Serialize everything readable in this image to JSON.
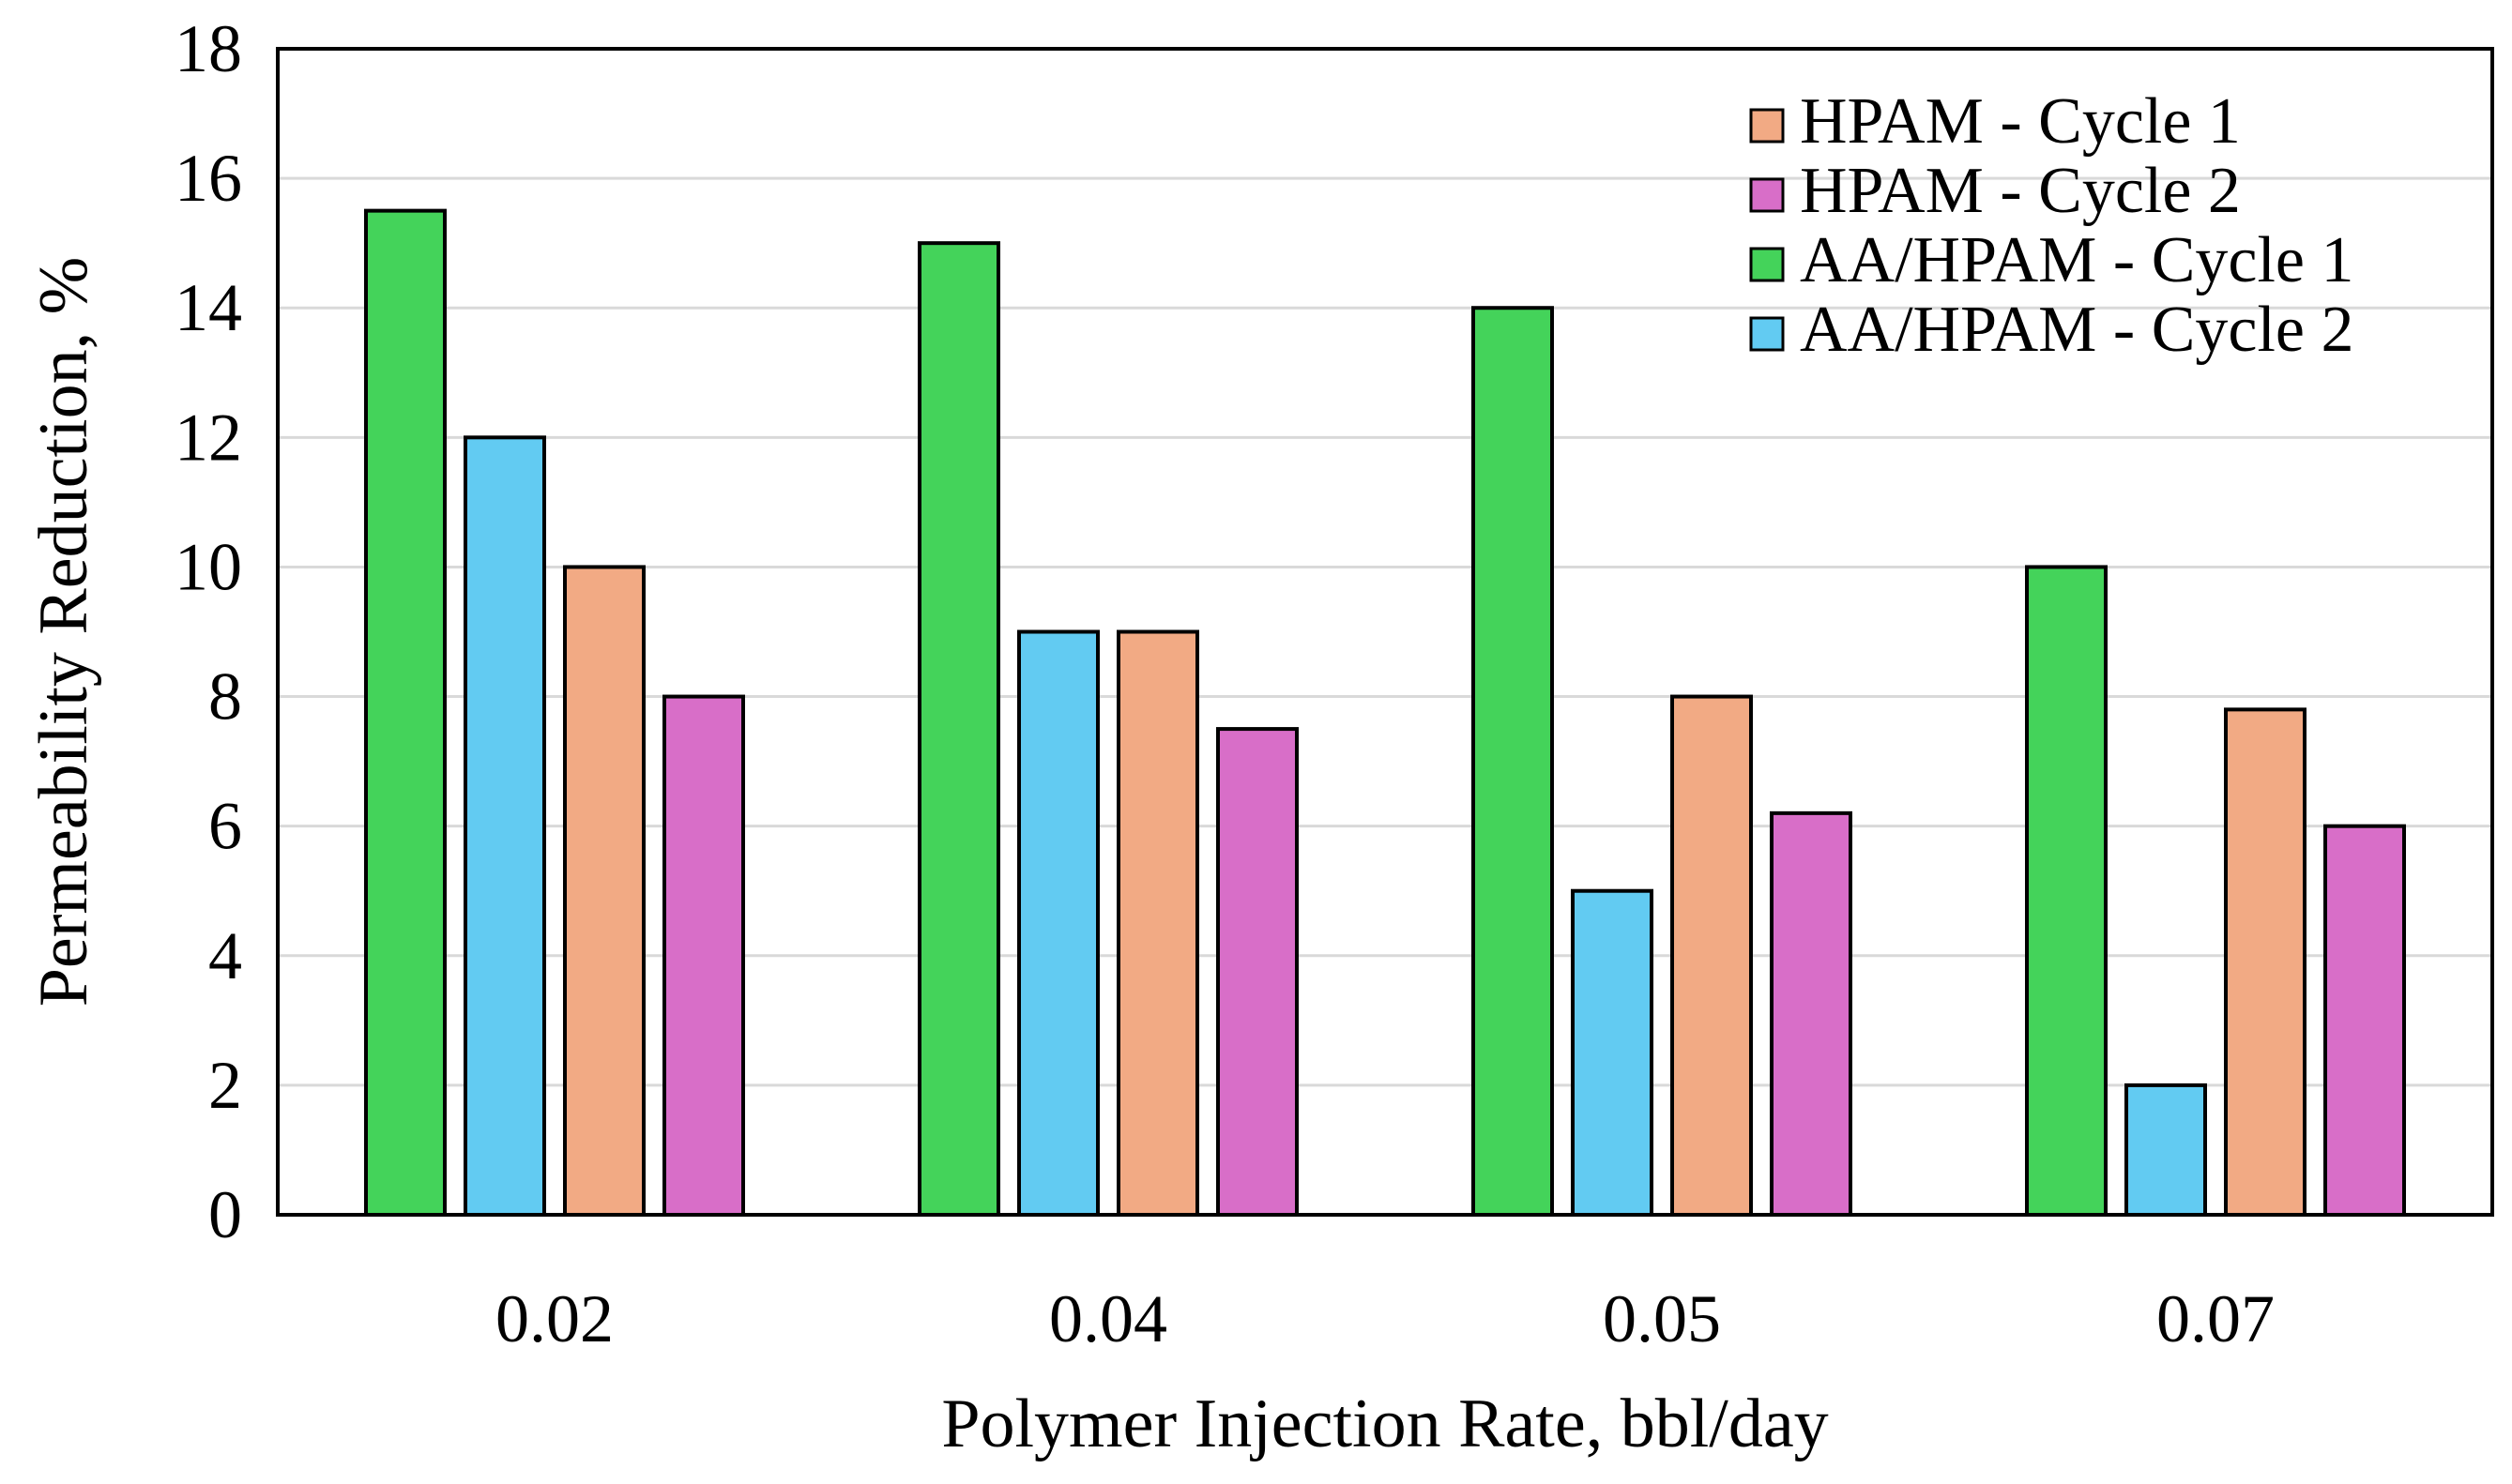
{
  "chart_data": {
    "type": "bar",
    "title": "",
    "xlabel": "Polymer Injection Rate, bbl/day",
    "ylabel": "Permeability Reduction, %",
    "ylim": [
      0,
      18
    ],
    "yticks": [
      "0",
      "2",
      "4",
      "6",
      "8",
      "10",
      "12",
      "14",
      "16",
      "18"
    ],
    "grid": true,
    "legend_position": "top-right",
    "categories": [
      "0.02",
      "0.04",
      "0.05",
      "0.07"
    ],
    "bar_order": [
      "AA/HPAM - Cycle 1",
      "AA/HPAM - Cycle 2",
      "HPAM - Cycle 1",
      "HPAM - Cycle 2"
    ],
    "legend_order": [
      "HPAM - Cycle 1",
      "HPAM - Cycle 2",
      "AA/HPAM - Cycle 1",
      "AA/HPAM - Cycle 2"
    ],
    "series": [
      {
        "name": "HPAM - Cycle 1",
        "color": "#F2AA84",
        "values": [
          10,
          9,
          8,
          7.8
        ]
      },
      {
        "name": "HPAM - Cycle 2",
        "color": "#D86EC8",
        "values": [
          8,
          7.5,
          6.2,
          6
        ]
      },
      {
        "name": "AA/HPAM - Cycle 1",
        "color": "#44D35A",
        "values": [
          15.5,
          15,
          14,
          10
        ]
      },
      {
        "name": "AA/HPAM - Cycle 2",
        "color": "#62CBF2",
        "values": [
          12,
          9,
          5,
          2
        ]
      }
    ]
  }
}
